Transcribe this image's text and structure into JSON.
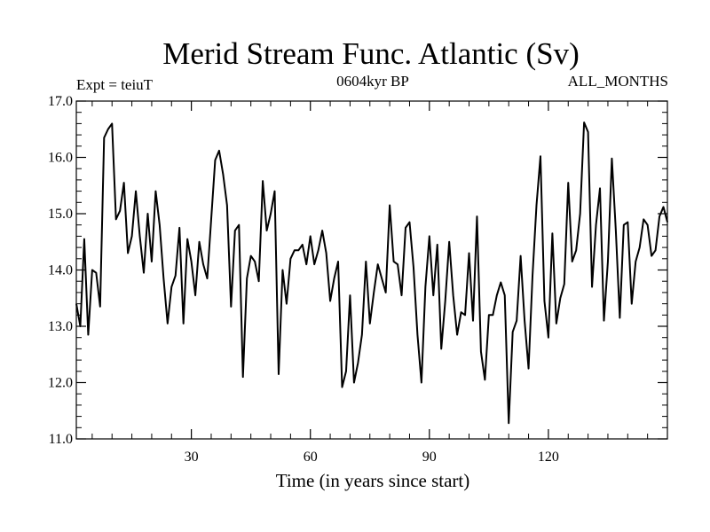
{
  "chart_data": {
    "type": "line",
    "title": "Merid Stream Func. Atlantic (Sv)",
    "subtitle_left": "Expt = teiuT",
    "subtitle_center": "0604kyr BP",
    "subtitle_right": "ALL_MONTHS",
    "xlabel": "Time (in years since start)",
    "ylabel": "",
    "xlim": [
      1,
      150
    ],
    "ylim": [
      11.0,
      17.0
    ],
    "x_ticks": [
      30,
      60,
      90,
      120
    ],
    "x_tick_labels": [
      "30",
      "60",
      "90",
      "120"
    ],
    "y_ticks": [
      11.0,
      12.0,
      13.0,
      14.0,
      15.0,
      16.0,
      17.0
    ],
    "y_tick_labels": [
      "11.0",
      "12.0",
      "13.0",
      "14.0",
      "15.0",
      "16.0",
      "17.0"
    ],
    "grid": false,
    "series": [
      {
        "name": "Merid Stream Func. Atlantic",
        "x_start": 1,
        "x_step": 1,
        "values": [
          13.4,
          13.0,
          14.55,
          12.85,
          14.0,
          13.95,
          13.35,
          16.35,
          16.5,
          16.6,
          14.9,
          15.05,
          15.55,
          14.3,
          14.6,
          15.4,
          14.6,
          13.95,
          15.0,
          14.15,
          15.4,
          14.8,
          13.85,
          13.05,
          13.7,
          13.9,
          14.75,
          13.05,
          14.55,
          14.15,
          13.55,
          14.5,
          14.1,
          13.85,
          14.9,
          15.95,
          16.12,
          15.7,
          15.15,
          13.35,
          14.7,
          14.8,
          12.1,
          13.85,
          14.25,
          14.15,
          13.8,
          15.58,
          14.7,
          15.0,
          15.4,
          12.15,
          14.0,
          13.4,
          14.2,
          14.35,
          14.35,
          14.45,
          14.1,
          14.6,
          14.1,
          14.35,
          14.7,
          14.3,
          13.45,
          13.85,
          14.15,
          11.92,
          12.2,
          13.55,
          12.0,
          12.35,
          12.85,
          14.15,
          13.05,
          13.6,
          14.1,
          13.85,
          13.6,
          15.15,
          14.15,
          14.1,
          13.55,
          14.75,
          14.85,
          14.05,
          12.85,
          12.0,
          13.7,
          14.6,
          13.55,
          14.45,
          12.6,
          13.45,
          14.5,
          13.55,
          12.85,
          13.25,
          13.2,
          14.3,
          13.1,
          14.95,
          12.55,
          12.05,
          13.2,
          13.2,
          13.55,
          13.78,
          13.55,
          11.28,
          12.9,
          13.1,
          14.25,
          13.1,
          12.25,
          13.9,
          15.15,
          16.02,
          13.45,
          12.8,
          14.65,
          13.05,
          13.5,
          13.75,
          15.55,
          14.15,
          14.35,
          15.0,
          16.62,
          16.45,
          13.7,
          14.8,
          15.45,
          13.1,
          14.15,
          15.98,
          14.7,
          13.15,
          14.8,
          14.85,
          13.4,
          14.15,
          14.4,
          14.9,
          14.8,
          14.25,
          14.35,
          14.95,
          15.12,
          14.85
        ]
      }
    ]
  }
}
